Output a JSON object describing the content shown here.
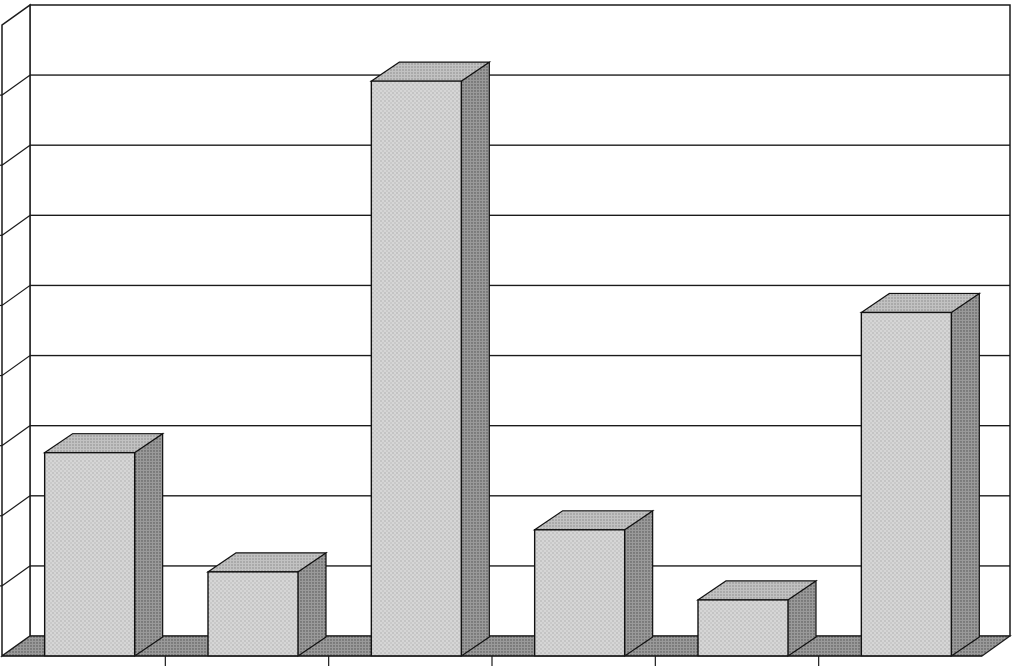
{
  "chart_data": {
    "type": "bar",
    "title": "",
    "xlabel": "",
    "ylabel": "",
    "categories": [
      "",
      "",
      "",
      "",
      "",
      ""
    ],
    "values": [
      2.9,
      1.2,
      8.2,
      1.8,
      0.8,
      4.9
    ],
    "ylim": [
      0,
      9
    ],
    "grid": true,
    "gridline_count": 9,
    "three_d": true,
    "legend": "none",
    "colors": {
      "bar_front": "#d4d4d4",
      "bar_side": "#8f8f8f",
      "bar_top": "#bcbcbc",
      "floor": "#9a9a9a",
      "grid": "#1a1a1a",
      "background": "#ffffff"
    }
  }
}
